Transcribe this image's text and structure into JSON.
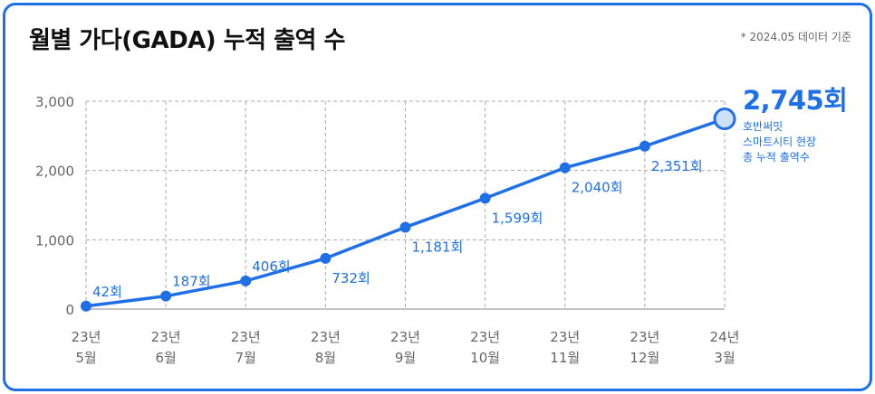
{
  "title": "월별 가다(GADA) 누적 출역 수",
  "note": "* 2024.05 데이터 기준",
  "accent_color": "#1f6fe6",
  "highlight": {
    "value_label": "2,745회",
    "description": "호반써밋\n스마트시티 현장\n총 누적 출역수"
  },
  "chart_data": {
    "type": "line",
    "x_labels": [
      [
        "23년",
        "5월"
      ],
      [
        "23년",
        "6월"
      ],
      [
        "23년",
        "7월"
      ],
      [
        "23년",
        "8월"
      ],
      [
        "23년",
        "9월"
      ],
      [
        "23년",
        "10월"
      ],
      [
        "23년",
        "11월"
      ],
      [
        "23년",
        "12월"
      ],
      [
        "24년",
        "3월"
      ]
    ],
    "values": [
      42,
      187,
      406,
      732,
      1181,
      1599,
      2040,
      2351,
      2745
    ],
    "data_labels": [
      "42회",
      "187회",
      "406회",
      "732회",
      "1,181회",
      "1,599회",
      "2,040회",
      "2,351회",
      ""
    ],
    "y_ticks": [
      "0",
      "1,000",
      "2,000",
      "3,000"
    ],
    "y_tick_values": [
      0,
      1000,
      2000,
      3000
    ],
    "ylim": [
      0,
      3000
    ],
    "grid": true
  }
}
